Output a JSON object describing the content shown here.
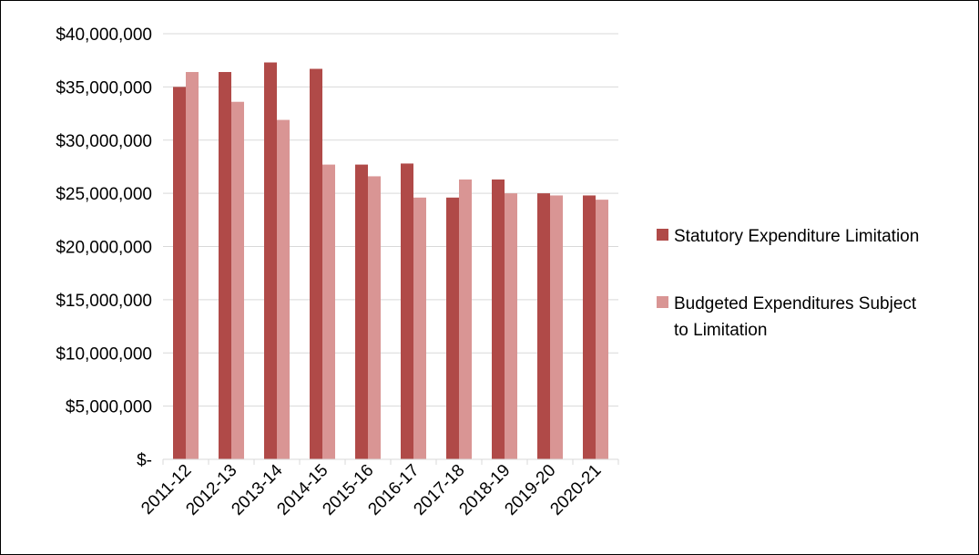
{
  "chart_data": {
    "type": "bar",
    "categories": [
      "2011-12",
      "2012-13",
      "2013-14",
      "2014-15",
      "2015-16",
      "2016-17",
      "2017-18",
      "2018-19",
      "2019-20",
      "2020-21"
    ],
    "series": [
      {
        "name": "Statutory Expenditure Limitation",
        "color": "#b04a48",
        "values": [
          35000000,
          36400000,
          37300000,
          36700000,
          27700000,
          27800000,
          24600000,
          26300000,
          25000000,
          24800000
        ]
      },
      {
        "name": "Budgeted Expenditures Subject to Limitation",
        "color": "#d99594",
        "values": [
          36400000,
          33600000,
          31900000,
          27700000,
          26600000,
          24600000,
          26300000,
          25000000,
          24800000,
          24400000
        ]
      }
    ],
    "y_ticks": [
      "$-",
      "$5,000,000",
      "$10,000,000",
      "$15,000,000",
      "$20,000,000",
      "$25,000,000",
      "$30,000,000",
      "$35,000,000",
      "$40,000,000"
    ],
    "ylim": [
      0,
      40000000
    ],
    "y_step": 5000000,
    "grid": true,
    "grid_color": "#d9d9d9",
    "legend_position": "right",
    "title": "",
    "xlabel": "",
    "ylabel": ""
  }
}
